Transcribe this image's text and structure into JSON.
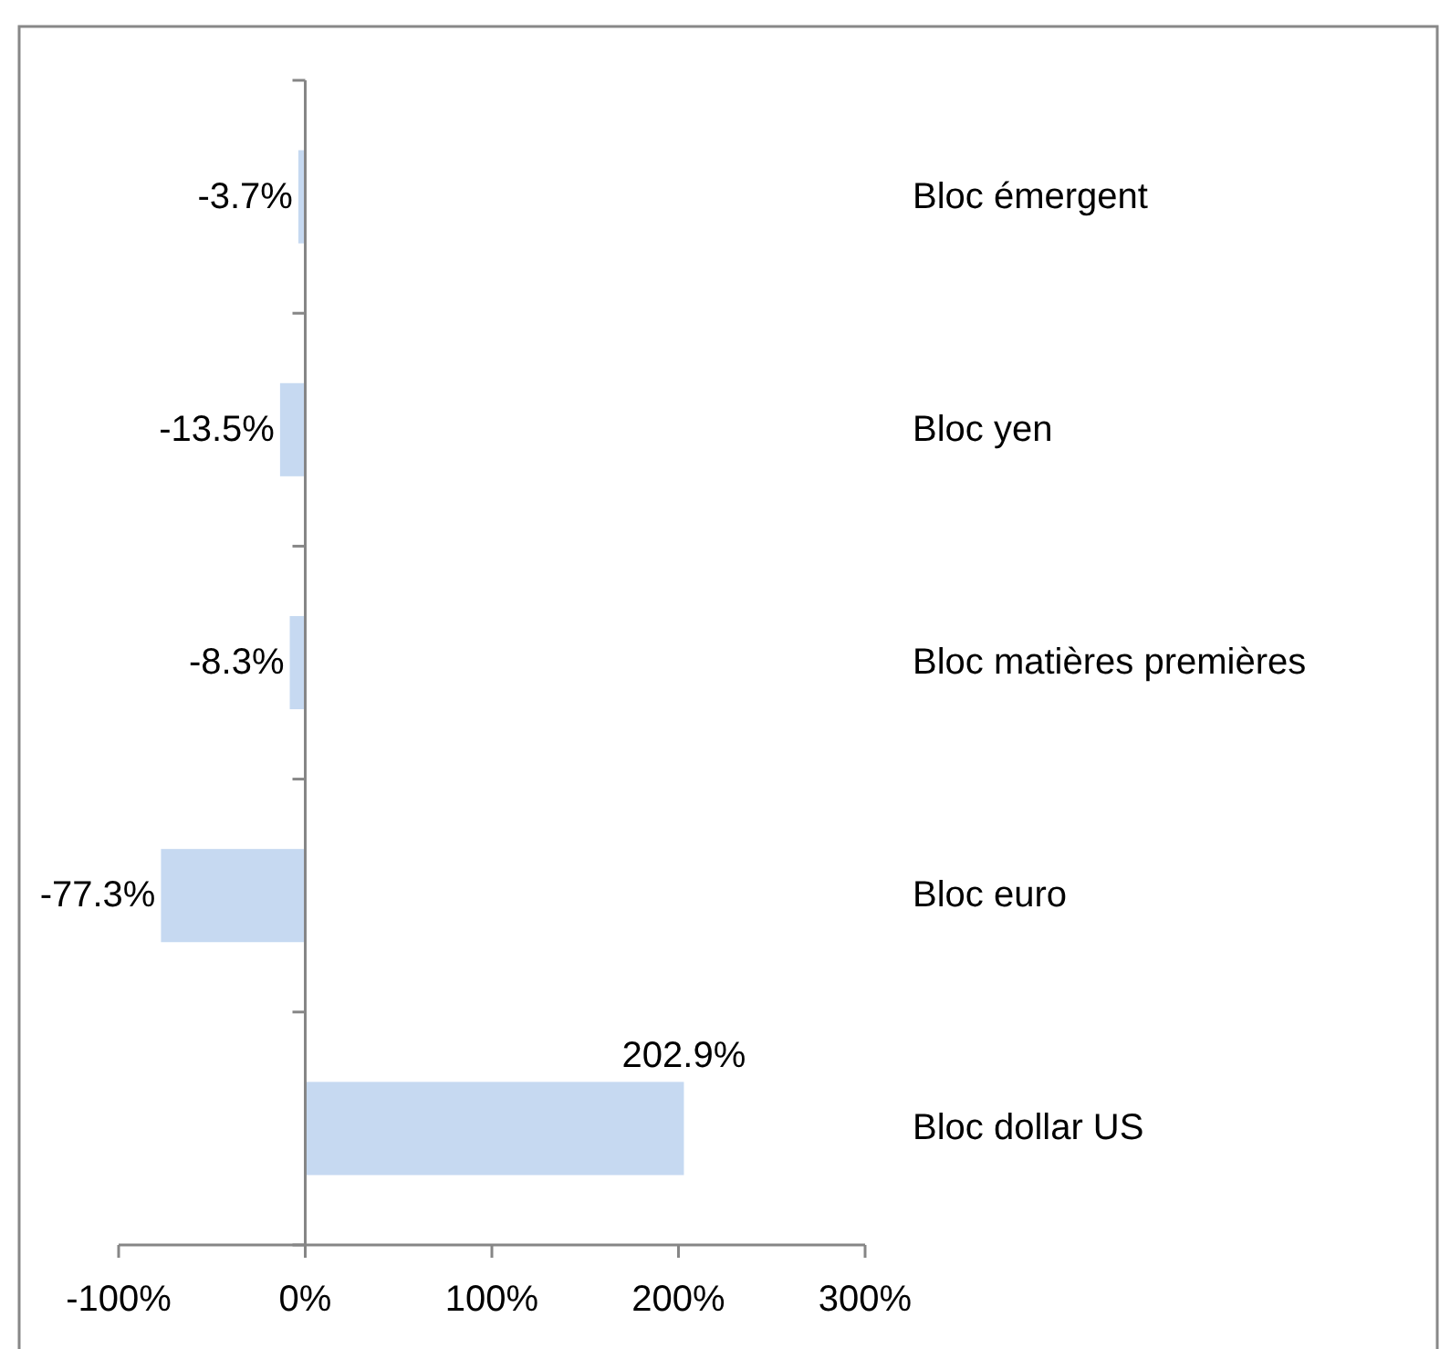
{
  "chart_data": {
    "type": "bar",
    "orientation": "horizontal",
    "categories": [
      "Bloc émergent",
      "Bloc yen",
      "Bloc matières premières",
      "Bloc euro",
      "Bloc dollar US"
    ],
    "values": [
      -3.7,
      -13.5,
      -8.3,
      -77.3,
      202.9
    ],
    "value_labels": [
      "-3.7%",
      "-13.5%",
      "-8.3%",
      "-77.3%",
      "202.9%"
    ],
    "color": "#c6d9f1",
    "xlim": [
      -100,
      300
    ],
    "xticks": [
      {
        "value": -100,
        "label": "-100%"
      },
      {
        "value": 0,
        "label": "0%"
      },
      {
        "value": 100,
        "label": "100%"
      },
      {
        "value": 200,
        "label": "200%"
      },
      {
        "value": 300,
        "label": "300%"
      }
    ]
  }
}
